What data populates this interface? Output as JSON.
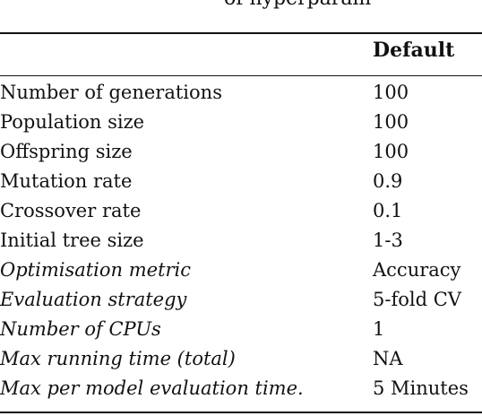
{
  "caption_fragment": "of hyperparam",
  "table": {
    "header_default": "Default",
    "rows": [
      {
        "parameter": "Number of generations",
        "default": "100",
        "italic": false
      },
      {
        "parameter": "Population size",
        "default": "100",
        "italic": false
      },
      {
        "parameter": "Offspring size",
        "default": "100",
        "italic": false
      },
      {
        "parameter": "Mutation rate",
        "default": "0.9",
        "italic": false
      },
      {
        "parameter": "Crossover rate",
        "default": "0.1",
        "italic": false
      },
      {
        "parameter": "Initial tree size",
        "default": "1-3",
        "italic": false
      },
      {
        "parameter": "Optimisation metric",
        "default": "Accuracy",
        "italic": true
      },
      {
        "parameter": "Evaluation strategy",
        "default": "5-fold CV",
        "italic": true
      },
      {
        "parameter": "Number of CPUs",
        "default": "1",
        "italic": true
      },
      {
        "parameter": "Max running time (total)",
        "default": "NA",
        "italic": true
      },
      {
        "parameter": "Max per model evaluation time.",
        "default": "5 Minutes",
        "italic": true
      }
    ]
  }
}
